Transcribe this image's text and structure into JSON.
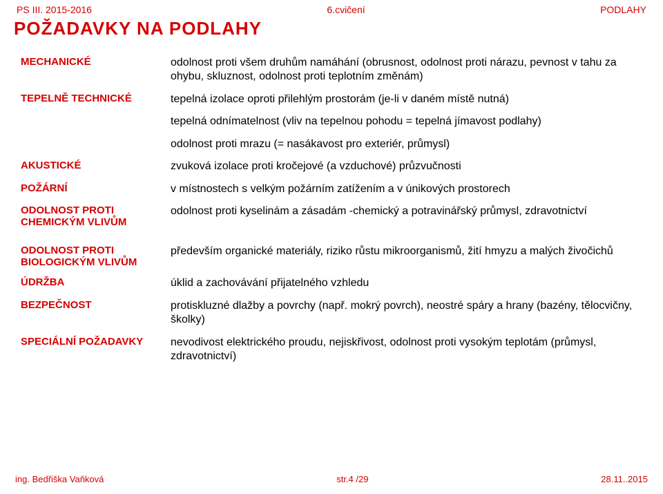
{
  "colors": {
    "accent": "#d40000",
    "text": "#000000",
    "background": "#ffffff"
  },
  "typography": {
    "family": "Arial, Helvetica, sans-serif",
    "title_size_pt": 20,
    "label_size_pt": 11,
    "body_size_pt": 12,
    "header_size_pt": 10,
    "footer_size_pt": 10
  },
  "header": {
    "left": "PS III. 2015-2016",
    "center": "6.cvičení",
    "right": "PODLAHY"
  },
  "title": "POŽADAVKY  NA  PODLAHY",
  "rows": [
    {
      "label": "MECHANICKÉ",
      "desc": "odolnost proti všem druhům namáhání (obrusnost, odolnost proti nárazu, pevnost v tahu za ohybu, skluznost, odolnost proti teplotním změnám)"
    },
    {
      "label": "TEPELNĚ TECHNICKÉ",
      "desc": "tepelná izolace oproti přilehlým prostorám (je-li v daném místě nutná)"
    },
    {
      "label": "",
      "desc": "tepelná odnímatelnost (vliv na tepelnou pohodu = tepelná jímavost podlahy)"
    },
    {
      "label": "",
      "desc": "odolnost proti mrazu (= nasákavost pro exteriér, průmysl)"
    },
    {
      "label": "AKUSTICKÉ",
      "desc": "zvuková izolace proti kročejové (a vzduchové) průzvučnosti"
    },
    {
      "label": "POŽÁRNÍ",
      "desc": "v místnostech s velkým požárním zatížením a v únikových prostorech"
    },
    {
      "label": "ODOLNOST PROTI CHEMICKÝM VLIVŮM",
      "desc": "odolnost proti kyselinám a zásadám -chemický a potravinářský průmysl, zdravotnictví"
    },
    {
      "label": "ODOLNOST PROTI BIOLOGICKÝM VLIVŮM",
      "desc": "především organické materiály, riziko růstu mikroorganismů, žití hmyzu a malých živočichů",
      "gap": true
    },
    {
      "label": "ÚDRŽBA",
      "desc": "úklid a zachovávání přijatelného vzhledu"
    },
    {
      "label": "BEZPEČNOST",
      "desc": "protiskluzné dlažby a povrchy (např. mokrý povrch), neostré spáry a hrany (bazény, tělocvičny, školky)"
    },
    {
      "label": "SPECIÁLNÍ POŽADAVKY",
      "desc": "nevodivost elektrického proudu, nejiskřivost, odolnost proti vysokým teplotám (průmysl, zdravotnictví)"
    }
  ],
  "footer": {
    "left": "ing. Bedřiška Vaňková",
    "center": "str.4 /29",
    "right": "28.11..2015"
  }
}
